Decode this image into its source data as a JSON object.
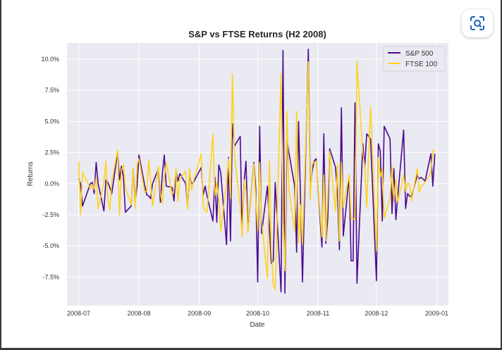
{
  "ui": {
    "lens_button_label": "Visual search"
  },
  "chart_data": {
    "type": "line",
    "title": "S&P vs FTSE Returns (H2 2008)",
    "xlabel": "Date",
    "ylabel": "Returns",
    "xlim": [
      "2008-06-25",
      "2009-01-07"
    ],
    "ylim": [
      -0.098,
      0.113
    ],
    "x_ticks": [
      "2008-07-01",
      "2008-08-01",
      "2008-09-01",
      "2008-10-01",
      "2008-11-01",
      "2008-12-01",
      "2009-01-01"
    ],
    "x_tick_labels": [
      "2008-07",
      "2008-08",
      "2008-09",
      "2008-10",
      "2008-11",
      "2008-12",
      "2009-01"
    ],
    "y_ticks": [
      -0.075,
      -0.05,
      -0.025,
      0.0,
      0.025,
      0.05,
      0.075,
      0.1
    ],
    "y_tick_labels": [
      "-7.5%",
      "-5.0%",
      "-2.5%",
      "0.0%",
      "2.5%",
      "5.0%",
      "7.5%",
      "10.0%"
    ],
    "grid": true,
    "legend_position": "top-right",
    "x": [
      "2008-07-01",
      "2008-07-02",
      "2008-07-03",
      "2008-07-07",
      "2008-07-08",
      "2008-07-09",
      "2008-07-10",
      "2008-07-11",
      "2008-07-14",
      "2008-07-15",
      "2008-07-16",
      "2008-07-17",
      "2008-07-18",
      "2008-07-21",
      "2008-07-22",
      "2008-07-23",
      "2008-07-24",
      "2008-07-25",
      "2008-07-28",
      "2008-07-29",
      "2008-07-30",
      "2008-07-31",
      "2008-08-01",
      "2008-08-04",
      "2008-08-05",
      "2008-08-06",
      "2008-08-07",
      "2008-08-08",
      "2008-08-11",
      "2008-08-12",
      "2008-08-13",
      "2008-08-14",
      "2008-08-15",
      "2008-08-18",
      "2008-08-19",
      "2008-08-20",
      "2008-08-21",
      "2008-08-22",
      "2008-08-25",
      "2008-08-26",
      "2008-08-27",
      "2008-08-28",
      "2008-08-29",
      "2008-09-02",
      "2008-09-03",
      "2008-09-04",
      "2008-09-05",
      "2008-09-08",
      "2008-09-09",
      "2008-09-10",
      "2008-09-11",
      "2008-09-12",
      "2008-09-15",
      "2008-09-16",
      "2008-09-17",
      "2008-09-18",
      "2008-09-19",
      "2008-09-22",
      "2008-09-23",
      "2008-09-24",
      "2008-09-25",
      "2008-09-26",
      "2008-09-29",
      "2008-09-30",
      "2008-10-01",
      "2008-10-02",
      "2008-10-03",
      "2008-10-06",
      "2008-10-07",
      "2008-10-08",
      "2008-10-09",
      "2008-10-10",
      "2008-10-13",
      "2008-10-14",
      "2008-10-15",
      "2008-10-16",
      "2008-10-17",
      "2008-10-20",
      "2008-10-21",
      "2008-10-22",
      "2008-10-23",
      "2008-10-24",
      "2008-10-27",
      "2008-10-28",
      "2008-10-29",
      "2008-10-30",
      "2008-10-31",
      "2008-11-03",
      "2008-11-04",
      "2008-11-05",
      "2008-11-06",
      "2008-11-07",
      "2008-11-10",
      "2008-11-11",
      "2008-11-12",
      "2008-11-13",
      "2008-11-14",
      "2008-11-17",
      "2008-11-18",
      "2008-11-19",
      "2008-11-20",
      "2008-11-21",
      "2008-11-24",
      "2008-11-25",
      "2008-11-26",
      "2008-11-28",
      "2008-12-01",
      "2008-12-02",
      "2008-12-03",
      "2008-12-04",
      "2008-12-05",
      "2008-12-08",
      "2008-12-09",
      "2008-12-10",
      "2008-12-11",
      "2008-12-12",
      "2008-12-15",
      "2008-12-16",
      "2008-12-17",
      "2008-12-18",
      "2008-12-19",
      "2008-12-22",
      "2008-12-23",
      "2008-12-24",
      "2008-12-26",
      "2008-12-29",
      "2008-12-30",
      "2008-12-31"
    ],
    "series": [
      {
        "name": "S&P 500",
        "color": "#4b0a91",
        "values": [
          0.004,
          0.0,
          -0.018,
          0.0,
          0.001,
          -0.008,
          0.017,
          0.0,
          -0.022,
          0.003,
          0.001,
          -0.003,
          -0.008,
          0.025,
          0.003,
          0.014,
          0.006,
          -0.023,
          -0.018,
          0.012,
          -0.014,
          -0.002,
          0.023,
          -0.002,
          -0.009,
          -0.01,
          -0.012,
          0.0,
          0.012,
          -0.015,
          0.008,
          0.023,
          -0.002,
          -0.003,
          -0.014,
          0.01,
          0.002,
          0.008,
          0.0,
          -0.019,
          0.007,
          0.0,
          0.001,
          0.013,
          -0.009,
          -0.002,
          -0.01,
          -0.03,
          0.005,
          -0.031,
          0.015,
          0.009,
          -0.049,
          0.021,
          -0.046,
          0.048,
          0.03,
          0.038,
          -0.038,
          0.002,
          0.018,
          -0.038,
          0.017,
          -0.003,
          -0.079,
          0.046,
          -0.04,
          -0.002,
          -0.035,
          -0.064,
          -0.062,
          0.001,
          -0.087,
          0.107,
          -0.088,
          0.037,
          0.025,
          -0.002,
          -0.055,
          0.05,
          -0.01,
          -0.079,
          0.108,
          -0.003,
          0.01,
          0.018,
          0.02,
          -0.051,
          0.04,
          -0.048,
          -0.028,
          0.028,
          0.013,
          -0.008,
          -0.053,
          0.061,
          -0.042,
          0.006,
          -0.062,
          -0.062,
          0.065,
          -0.08,
          0.032,
          0.013,
          0.04,
          0.036,
          -0.078,
          0.032,
          0.026,
          -0.03,
          0.046,
          0.036,
          -0.024,
          0.012,
          -0.029,
          -0.01,
          0.043,
          -0.02,
          -0.008,
          -0.01,
          -0.011,
          0.007,
          0.004,
          0.005,
          0.002,
          0.024,
          -0.002,
          0.024
        ]
      },
      {
        "name": "FTSE 100",
        "color": "#ffd21f",
        "values": [
          0.018,
          -0.025,
          0.009,
          -0.004,
          -0.001,
          -0.005,
          0.005,
          -0.02,
          0.001,
          0.018,
          -0.013,
          -0.021,
          0.001,
          0.027,
          -0.025,
          0.011,
          0.015,
          -0.003,
          -0.017,
          0.012,
          -0.02,
          0.015,
          0.02,
          -0.007,
          -0.006,
          0.019,
          0.001,
          -0.018,
          0.014,
          -0.008,
          -0.016,
          0.005,
          0.017,
          -0.009,
          -0.004,
          0.012,
          -0.014,
          0.004,
          0.01,
          -0.021,
          0.012,
          -0.005,
          0.002,
          0.024,
          -0.018,
          -0.022,
          -0.023,
          0.04,
          -0.01,
          0.001,
          -0.013,
          -0.038,
          0.001,
          0.02,
          -0.012,
          0.088,
          0.024,
          -0.018,
          -0.043,
          0.003,
          -0.006,
          -0.039,
          0.016,
          -0.012,
          -0.038,
          0.017,
          -0.03,
          -0.076,
          0.018,
          -0.053,
          -0.081,
          -0.085,
          0.088,
          -0.025,
          -0.07,
          0.058,
          -0.004,
          -0.038,
          0.058,
          -0.048,
          -0.017,
          -0.049,
          0.098,
          -0.013,
          0.016,
          0.017,
          0.018,
          -0.043,
          0.007,
          -0.046,
          -0.009,
          0.026,
          -0.022,
          0.016,
          -0.046,
          0.017,
          -0.019,
          0.007,
          -0.028,
          -0.028,
          -0.029,
          0.098,
          0.024,
          0.014,
          -0.019,
          0.062,
          -0.054,
          0.021,
          0.005,
          0.012,
          -0.028,
          -0.011,
          0.014,
          -0.014,
          0.003,
          -0.015,
          0.007,
          -0.006,
          0.0,
          0.0,
          -0.014,
          0.012,
          -0.007,
          -0.002,
          0.001,
          0.009,
          0.026,
          0.027
        ]
      }
    ]
  }
}
